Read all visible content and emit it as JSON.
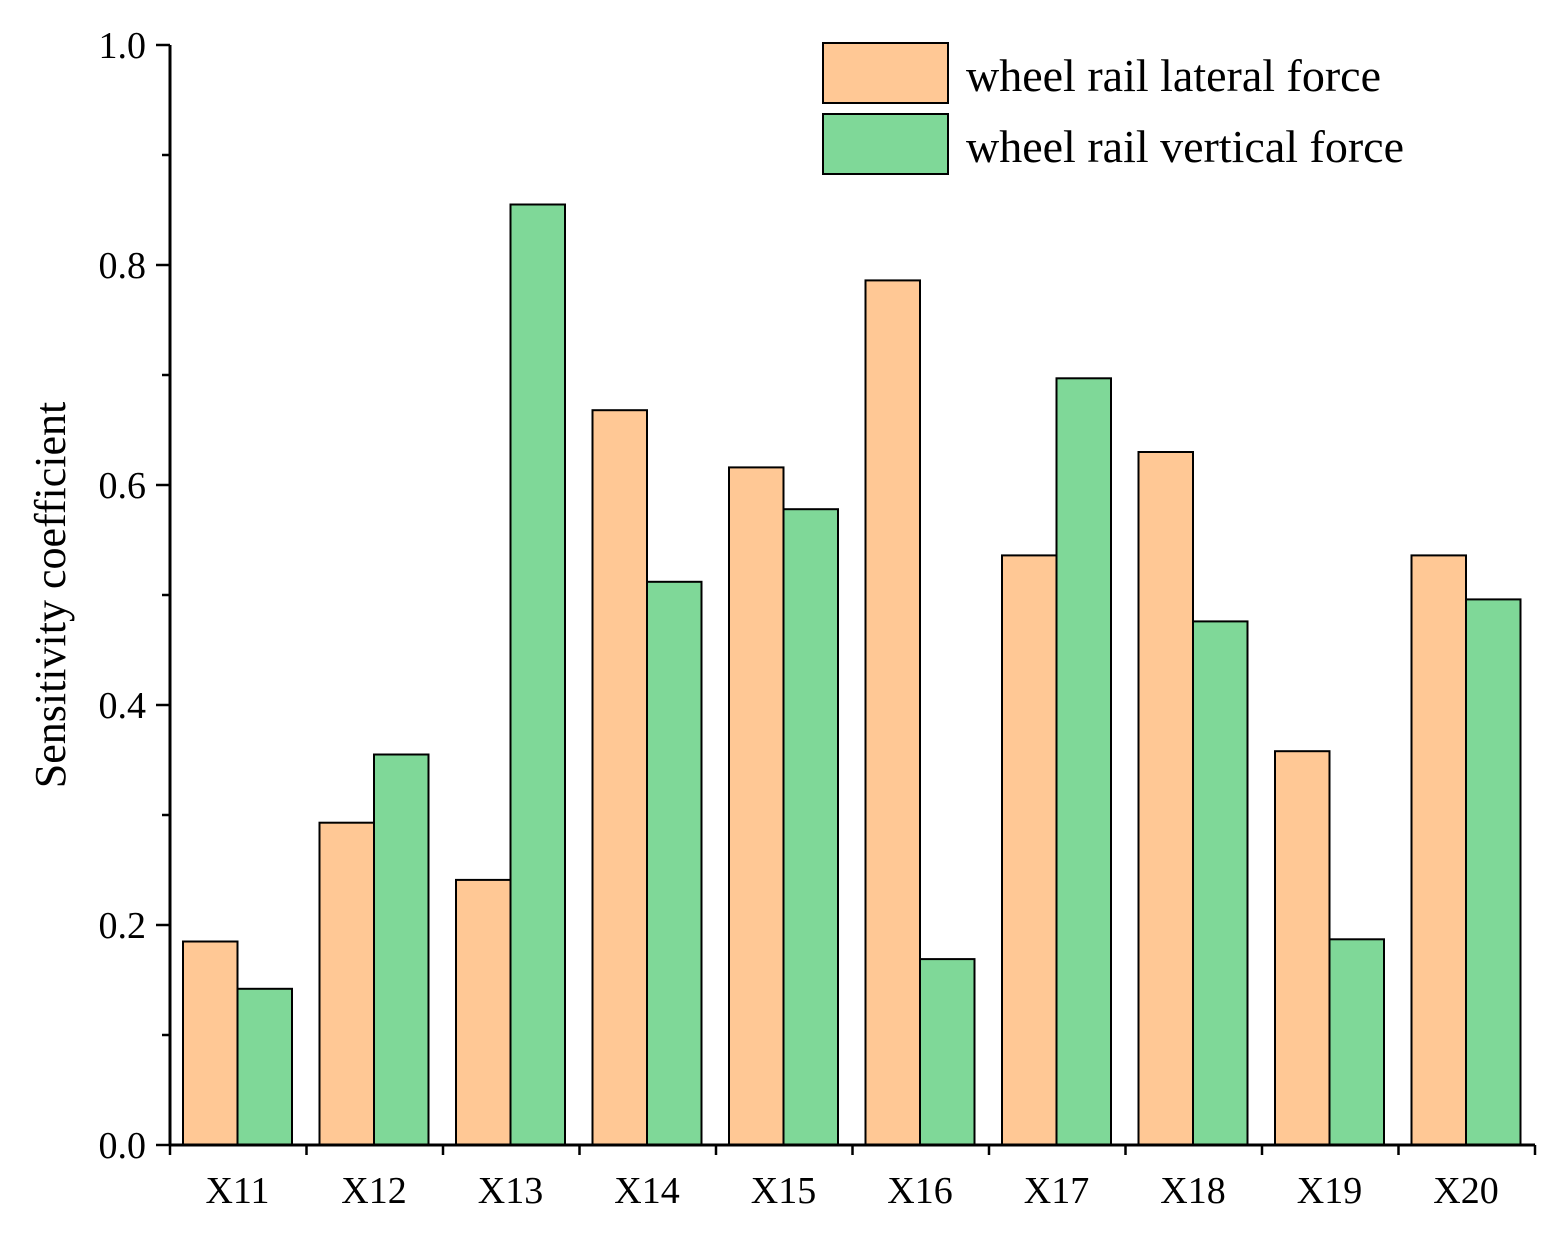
{
  "chart_data": {
    "type": "bar",
    "ylabel": "Sensitivity coefficient",
    "ylim": [
      0,
      1.0
    ],
    "yticks": [
      "0.0",
      "0.2",
      "0.4",
      "0.6",
      "0.8",
      "1.0"
    ],
    "categories": [
      "X11",
      "X12",
      "X13",
      "X14",
      "X15",
      "X16",
      "X17",
      "X18",
      "X19",
      "X20"
    ],
    "series": [
      {
        "name": "wheel rail lateral force",
        "color": "#FFC895",
        "values": [
          0.185,
          0.293,
          0.241,
          0.668,
          0.616,
          0.786,
          0.536,
          0.63,
          0.358,
          0.536
        ]
      },
      {
        "name": "wheel rail vertical force",
        "color": "#7FD898",
        "values": [
          0.142,
          0.355,
          0.855,
          0.512,
          0.578,
          0.169,
          0.697,
          0.476,
          0.187,
          0.496
        ]
      }
    ],
    "legend_position": "top-right",
    "grid": false
  }
}
